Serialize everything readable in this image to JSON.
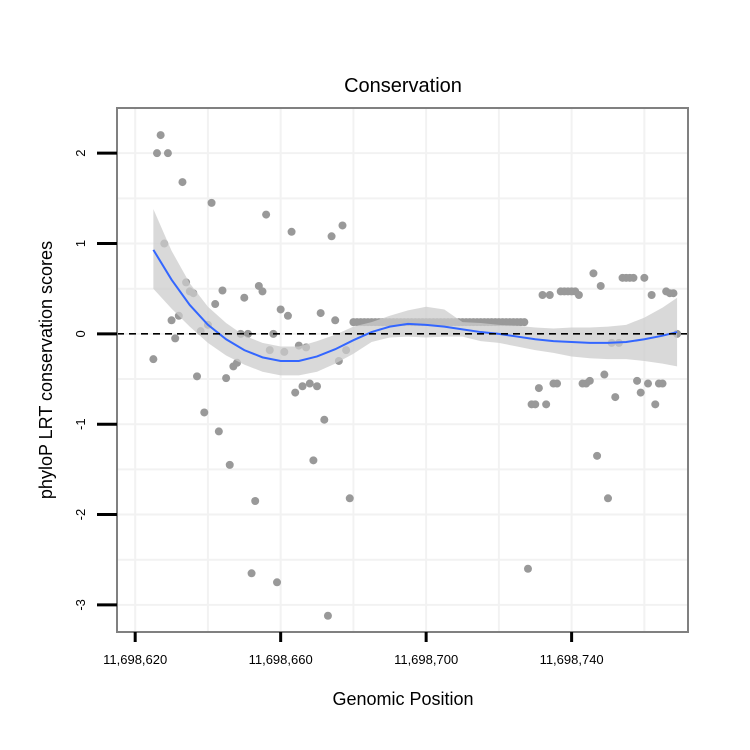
{
  "chart_data": {
    "type": "scatter",
    "title": "Conservation",
    "xlabel": "Genomic Position",
    "ylabel": "phyloP LRT conservation scores",
    "xlim": [
      11698615,
      11698772
    ],
    "ylim": [
      -3.3,
      2.5
    ],
    "x_ticks": [
      11698620,
      11698660,
      11698700,
      11698740
    ],
    "x_tick_labels": [
      "11,698,620",
      "11,698,660",
      "11,698,700",
      "11,698,740"
    ],
    "y_ticks": [
      2,
      1,
      0,
      -1,
      -2,
      -3
    ],
    "y_tick_labels": [
      "2",
      "1",
      "0",
      "-1",
      "-2",
      "-3"
    ],
    "reference_line": 0,
    "colors": {
      "points": "#999999",
      "smooth_line": "#3366ff",
      "ribbon": "#cccccc",
      "grid": "#f2f2f2",
      "frame": "#808080"
    },
    "points": [
      [
        11698625,
        -0.28
      ],
      [
        11698626,
        2.0
      ],
      [
        11698627,
        2.2
      ],
      [
        11698628,
        1.0
      ],
      [
        11698629,
        2.0
      ],
      [
        11698630,
        0.15
      ],
      [
        11698631,
        -0.05
      ],
      [
        11698632,
        0.2
      ],
      [
        11698633,
        1.68
      ],
      [
        11698634,
        0.57
      ],
      [
        11698635,
        0.47
      ],
      [
        11698636,
        0.45
      ],
      [
        11698637,
        -0.47
      ],
      [
        11698638,
        0.03
      ],
      [
        11698639,
        -0.87
      ],
      [
        11698640,
        0.1
      ],
      [
        11698641,
        1.45
      ],
      [
        11698642,
        0.33
      ],
      [
        11698643,
        -1.08
      ],
      [
        11698644,
        0.48
      ],
      [
        11698645,
        -0.49
      ],
      [
        11698646,
        -1.45
      ],
      [
        11698647,
        -0.36
      ],
      [
        11698648,
        -0.32
      ],
      [
        11698649,
        0.0
      ],
      [
        11698650,
        0.4
      ],
      [
        11698651,
        0.0
      ],
      [
        11698652,
        -2.65
      ],
      [
        11698653,
        -1.85
      ],
      [
        11698654,
        0.53
      ],
      [
        11698655,
        0.47
      ],
      [
        11698656,
        1.32
      ],
      [
        11698657,
        -0.18
      ],
      [
        11698658,
        0.0
      ],
      [
        11698659,
        -2.75
      ],
      [
        11698660,
        0.27
      ],
      [
        11698661,
        -0.2
      ],
      [
        11698662,
        0.2
      ],
      [
        11698663,
        1.13
      ],
      [
        11698664,
        -0.65
      ],
      [
        11698665,
        -0.13
      ],
      [
        11698666,
        -0.58
      ],
      [
        11698667,
        -0.15
      ],
      [
        11698668,
        -0.55
      ],
      [
        11698669,
        -1.4
      ],
      [
        11698670,
        -0.58
      ],
      [
        11698671,
        0.23
      ],
      [
        11698672,
        -0.95
      ],
      [
        11698673,
        -3.12
      ],
      [
        11698674,
        1.08
      ],
      [
        11698675,
        0.15
      ],
      [
        11698676,
        -0.3
      ],
      [
        11698677,
        1.2
      ],
      [
        11698678,
        -0.18
      ],
      [
        11698679,
        -1.82
      ],
      [
        11698680,
        0.13
      ],
      [
        11698681,
        0.13
      ],
      [
        11698682,
        0.13
      ],
      [
        11698683,
        0.13
      ],
      [
        11698684,
        0.13
      ],
      [
        11698685,
        0.13
      ],
      [
        11698686,
        0.13
      ],
      [
        11698687,
        0.13
      ],
      [
        11698688,
        0.13
      ],
      [
        11698689,
        0.13
      ],
      [
        11698690,
        0.13
      ],
      [
        11698691,
        0.13
      ],
      [
        11698692,
        0.13
      ],
      [
        11698693,
        0.13
      ],
      [
        11698694,
        0.13
      ],
      [
        11698695,
        0.13
      ],
      [
        11698696,
        0.13
      ],
      [
        11698697,
        0.13
      ],
      [
        11698698,
        0.13
      ],
      [
        11698699,
        0.13
      ],
      [
        11698700,
        0.13
      ],
      [
        11698701,
        0.13
      ],
      [
        11698702,
        0.13
      ],
      [
        11698703,
        0.13
      ],
      [
        11698704,
        0.13
      ],
      [
        11698705,
        0.13
      ],
      [
        11698706,
        0.13
      ],
      [
        11698707,
        0.13
      ],
      [
        11698708,
        0.13
      ],
      [
        11698709,
        0.13
      ],
      [
        11698710,
        0.13
      ],
      [
        11698711,
        0.13
      ],
      [
        11698712,
        0.13
      ],
      [
        11698713,
        0.13
      ],
      [
        11698714,
        0.13
      ],
      [
        11698715,
        0.13
      ],
      [
        11698716,
        0.13
      ],
      [
        11698717,
        0.13
      ],
      [
        11698718,
        0.13
      ],
      [
        11698719,
        0.13
      ],
      [
        11698720,
        0.13
      ],
      [
        11698721,
        0.13
      ],
      [
        11698722,
        0.13
      ],
      [
        11698723,
        0.13
      ],
      [
        11698724,
        0.13
      ],
      [
        11698725,
        0.13
      ],
      [
        11698726,
        0.13
      ],
      [
        11698727,
        0.13
      ],
      [
        11698728,
        -2.6
      ],
      [
        11698729,
        -0.78
      ],
      [
        11698730,
        -0.78
      ],
      [
        11698731,
        -0.6
      ],
      [
        11698732,
        0.43
      ],
      [
        11698733,
        -0.78
      ],
      [
        11698734,
        0.43
      ],
      [
        11698735,
        -0.55
      ],
      [
        11698736,
        -0.55
      ],
      [
        11698737,
        0.47
      ],
      [
        11698738,
        0.47
      ],
      [
        11698739,
        0.47
      ],
      [
        11698740,
        0.47
      ],
      [
        11698741,
        0.47
      ],
      [
        11698742,
        0.43
      ],
      [
        11698743,
        -0.55
      ],
      [
        11698744,
        -0.55
      ],
      [
        11698745,
        -0.52
      ],
      [
        11698746,
        0.67
      ],
      [
        11698747,
        -1.35
      ],
      [
        11698748,
        0.53
      ],
      [
        11698749,
        -0.45
      ],
      [
        11698750,
        -1.82
      ],
      [
        11698751,
        -0.1
      ],
      [
        11698752,
        -0.7
      ],
      [
        11698753,
        -0.1
      ],
      [
        11698754,
        0.62
      ],
      [
        11698755,
        0.62
      ],
      [
        11698756,
        0.62
      ],
      [
        11698757,
        0.62
      ],
      [
        11698758,
        -0.52
      ],
      [
        11698759,
        -0.65
      ],
      [
        11698760,
        0.62
      ],
      [
        11698761,
        -0.55
      ],
      [
        11698762,
        0.43
      ],
      [
        11698763,
        -0.78
      ],
      [
        11698764,
        -0.55
      ],
      [
        11698765,
        -0.55
      ],
      [
        11698766,
        0.47
      ],
      [
        11698767,
        0.45
      ],
      [
        11698768,
        0.45
      ],
      [
        11698769,
        0.0
      ]
    ],
    "smooth_fit": [
      [
        11698625,
        0.93
      ],
      [
        11698630,
        0.6
      ],
      [
        11698635,
        0.32
      ],
      [
        11698640,
        0.1
      ],
      [
        11698645,
        -0.06
      ],
      [
        11698650,
        -0.18
      ],
      [
        11698655,
        -0.26
      ],
      [
        11698660,
        -0.3
      ],
      [
        11698665,
        -0.3
      ],
      [
        11698670,
        -0.25
      ],
      [
        11698675,
        -0.17
      ],
      [
        11698680,
        -0.07
      ],
      [
        11698685,
        0.02
      ],
      [
        11698690,
        0.08
      ],
      [
        11698695,
        0.11
      ],
      [
        11698700,
        0.1
      ],
      [
        11698705,
        0.08
      ],
      [
        11698710,
        0.05
      ],
      [
        11698715,
        0.02
      ],
      [
        11698720,
        0.0
      ],
      [
        11698725,
        -0.03
      ],
      [
        11698730,
        -0.06
      ],
      [
        11698735,
        -0.08
      ],
      [
        11698740,
        -0.09
      ],
      [
        11698745,
        -0.1
      ],
      [
        11698750,
        -0.1
      ],
      [
        11698755,
        -0.09
      ],
      [
        11698760,
        -0.06
      ],
      [
        11698765,
        -0.02
      ],
      [
        11698769,
        0.02
      ]
    ],
    "confidence_band": [
      [
        11698625,
        0.5,
        1.38
      ],
      [
        11698630,
        0.28,
        0.92
      ],
      [
        11698635,
        0.08,
        0.56
      ],
      [
        11698640,
        -0.1,
        0.3
      ],
      [
        11698645,
        -0.24,
        0.12
      ],
      [
        11698650,
        -0.34,
        -0.02
      ],
      [
        11698655,
        -0.42,
        -0.1
      ],
      [
        11698660,
        -0.46,
        -0.14
      ],
      [
        11698665,
        -0.46,
        -0.14
      ],
      [
        11698670,
        -0.42,
        -0.08
      ],
      [
        11698675,
        -0.33,
        -0.01
      ],
      [
        11698680,
        -0.22,
        0.08
      ],
      [
        11698685,
        -0.09,
        0.13
      ],
      [
        11698690,
        -0.04,
        0.2
      ],
      [
        11698695,
        -0.03,
        0.26
      ],
      [
        11698700,
        -0.04,
        0.3
      ],
      [
        11698705,
        -0.03,
        0.27
      ],
      [
        11698710,
        -0.03,
        0.13
      ],
      [
        11698715,
        -0.08,
        0.12
      ],
      [
        11698720,
        -0.1,
        0.1
      ],
      [
        11698725,
        -0.14,
        0.09
      ],
      [
        11698730,
        -0.18,
        0.07
      ],
      [
        11698735,
        -0.21,
        0.06
      ],
      [
        11698740,
        -0.25,
        0.07
      ],
      [
        11698745,
        -0.27,
        0.07
      ],
      [
        11698750,
        -0.28,
        0.08
      ],
      [
        11698755,
        -0.28,
        0.1
      ],
      [
        11698760,
        -0.3,
        0.18
      ],
      [
        11698765,
        -0.33,
        0.29
      ],
      [
        11698769,
        -0.36,
        0.4
      ]
    ]
  }
}
